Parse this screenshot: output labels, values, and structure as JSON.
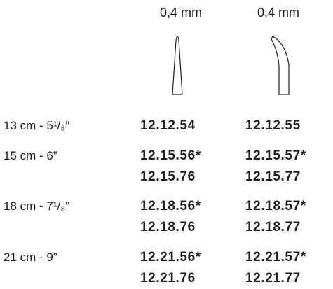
{
  "header": {
    "columns": [
      "0,4 mm",
      "0,4 mm"
    ]
  },
  "rows": [
    {
      "label": "13 cm - 5¹/₈”",
      "cells": [
        [
          "12.12.54"
        ],
        [
          "12.12.55"
        ]
      ]
    },
    {
      "label": "15 cm - 6”",
      "cells": [
        [
          "12.15.56*",
          "12.15.76"
        ],
        [
          "12.15.57*",
          "12.15.77"
        ]
      ]
    },
    {
      "label": "18 cm - 7¹/₈”",
      "cells": [
        [
          "12.18.56*",
          "12.18.76"
        ],
        [
          "12.18.57*",
          "12.18.77"
        ]
      ]
    },
    {
      "label": "21 cm - 9”",
      "cells": [
        [
          "12.21.56*",
          "12.21.76"
        ],
        [
          "12.21.57*",
          "12.21.77"
        ]
      ]
    }
  ]
}
